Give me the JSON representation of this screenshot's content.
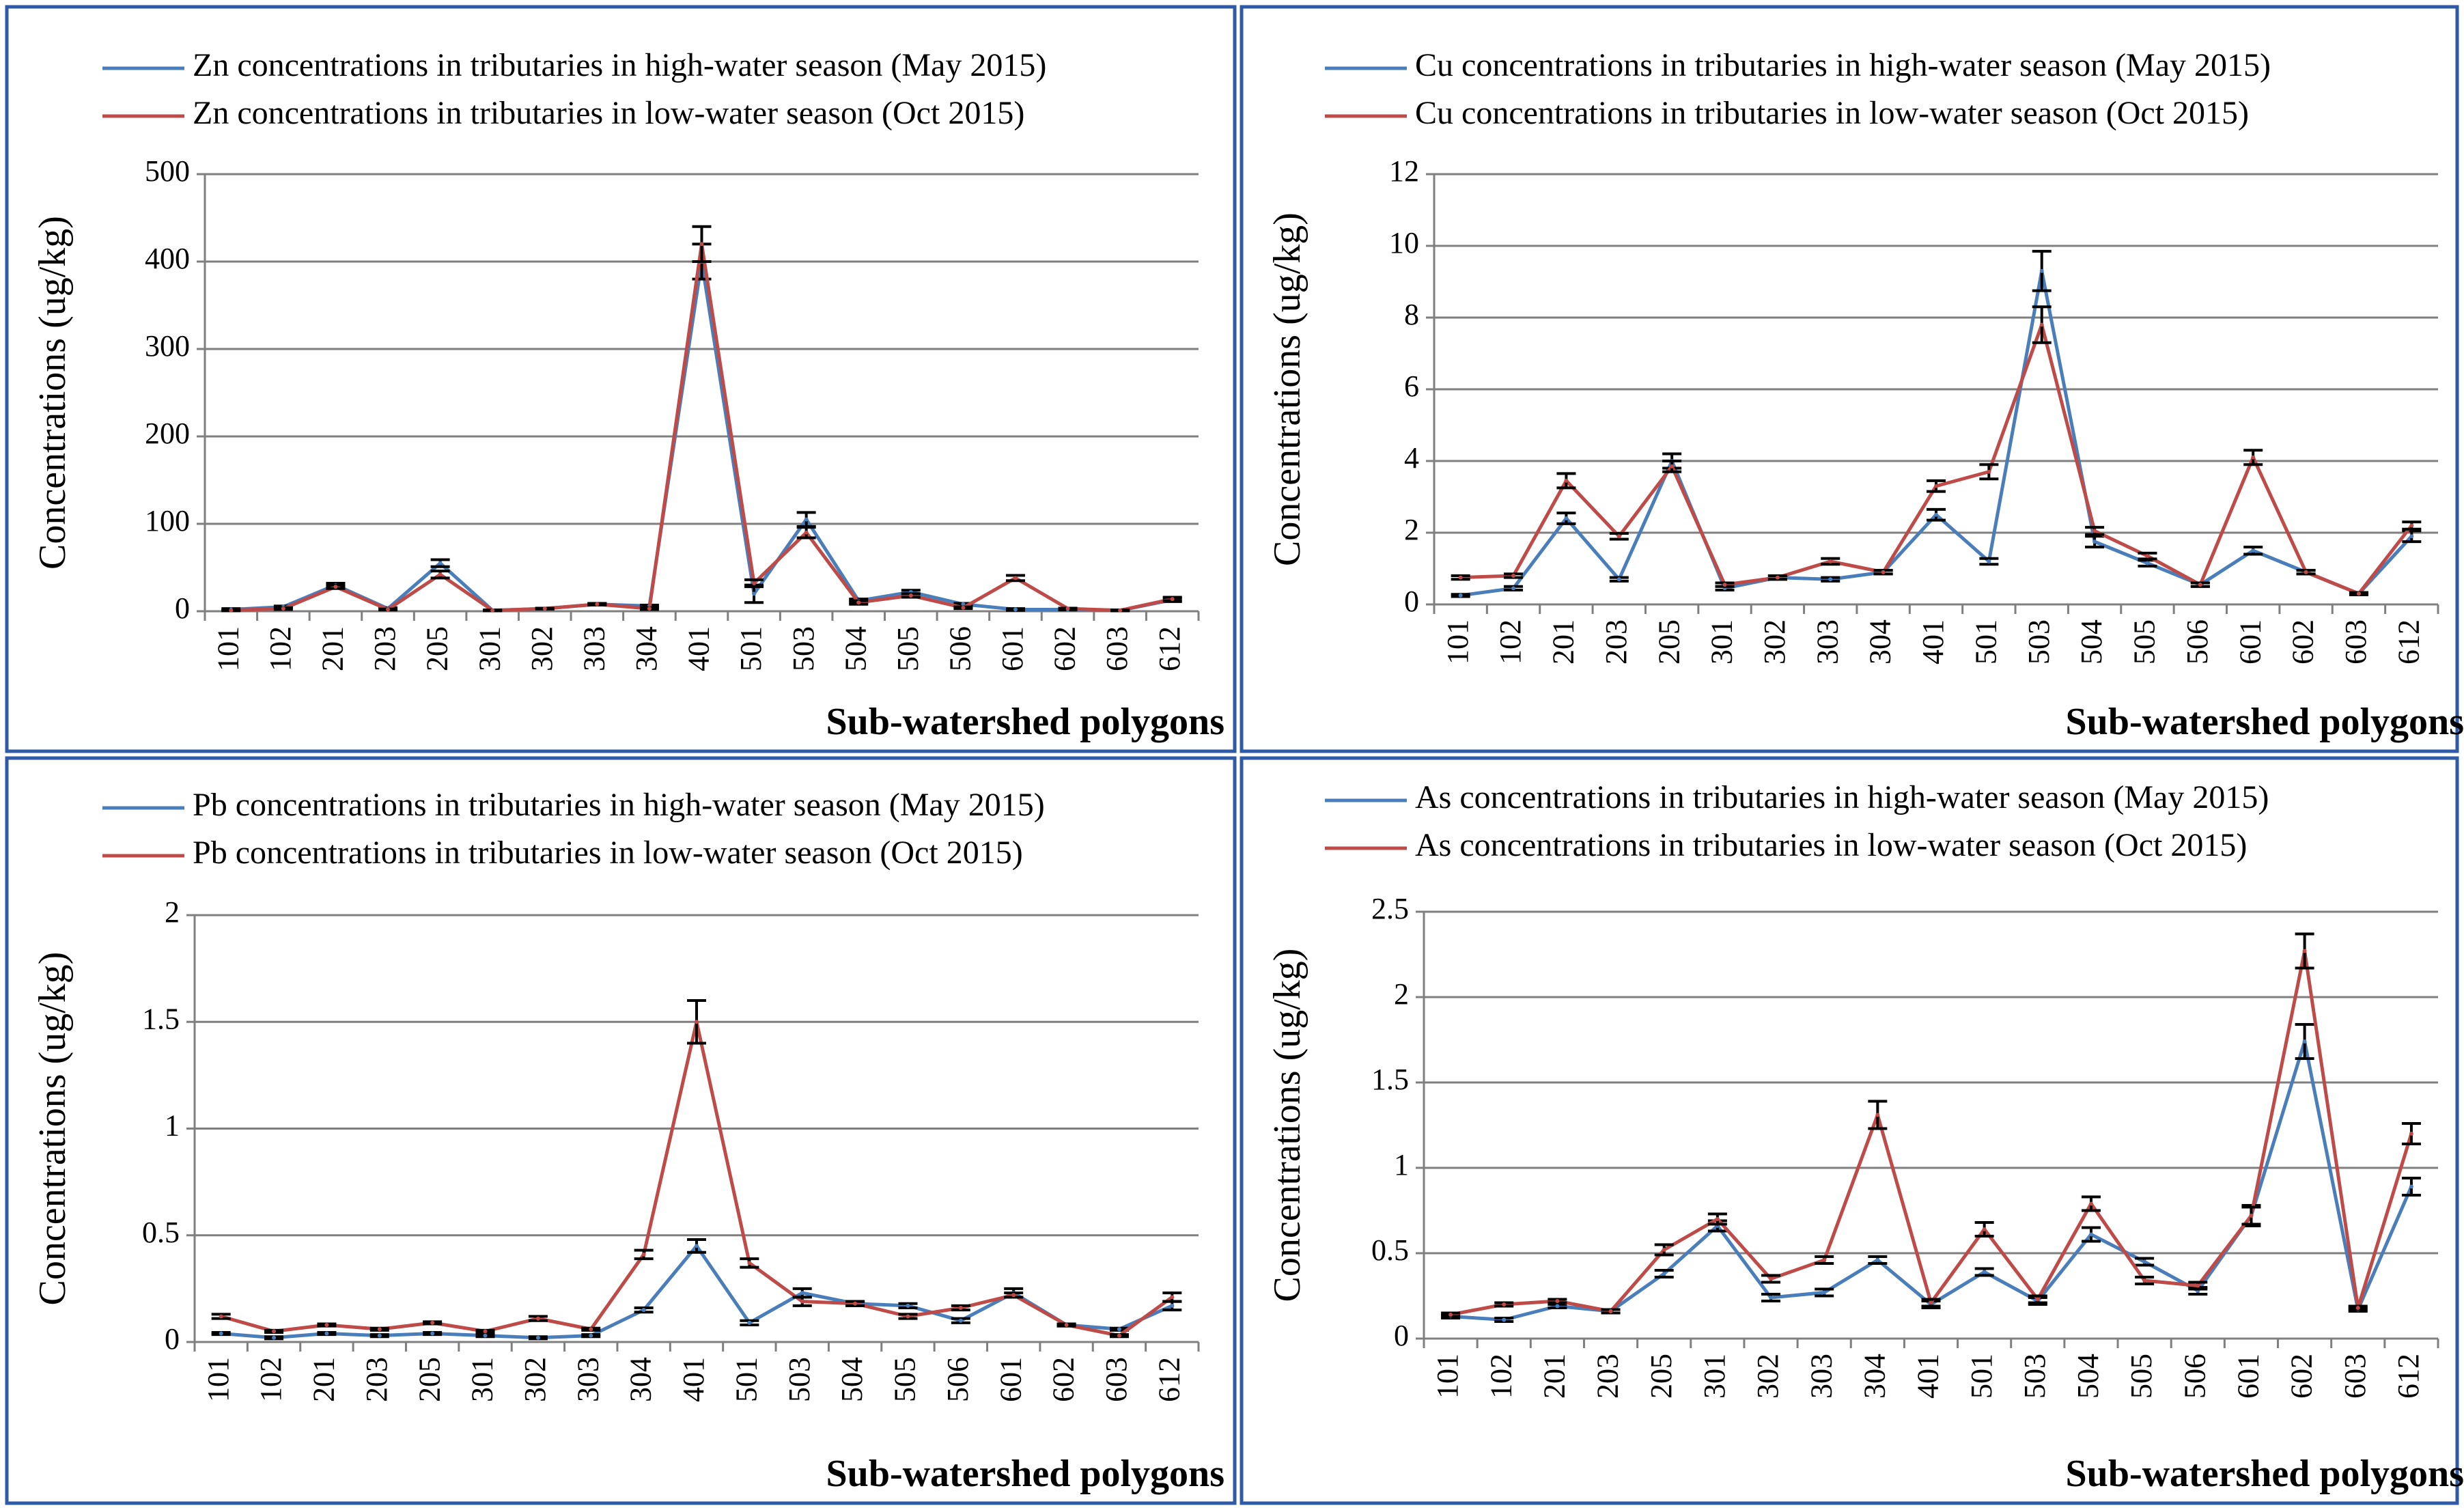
{
  "colors": {
    "high": "#4a7ebb",
    "low": "#be4b48",
    "border": "#2e5aa8",
    "grid": "#7f7f7f",
    "error_bar": "#000000"
  },
  "chart_data": [
    {
      "type": "line",
      "title": "",
      "xlabel": "Sub-watershed polygons",
      "ylabel": "Concentrations (ug/kg)",
      "ylim": [
        0,
        500
      ],
      "yticks": [
        "0",
        "100",
        "200",
        "300",
        "400",
        "500"
      ],
      "yticks_values": [
        0,
        100,
        200,
        300,
        400,
        500
      ],
      "grid": true,
      "legend": "top-right",
      "categories": [
        "101",
        "102",
        "201",
        "203",
        "205",
        "301",
        "302",
        "303",
        "304",
        "401",
        "501",
        "503",
        "504",
        "505",
        "506",
        "601",
        "602",
        "603",
        "612"
      ],
      "series": [
        {
          "name": "Zn concentrations in tributaries in high-water season (May 2015)",
          "color_key": "high",
          "values": [
            2,
            5,
            30,
            3,
            55,
            1,
            3,
            8,
            6,
            400,
            20,
            105,
            12,
            22,
            8,
            2,
            2,
            1,
            13
          ],
          "errors": [
            1,
            1,
            2,
            1,
            4,
            0.5,
            0.5,
            1,
            1,
            20,
            10,
            8,
            2,
            2,
            1,
            1,
            0.5,
            0.5,
            2
          ]
        },
        {
          "name": "Zn concentrations in tributaries in low-water season (Oct 2015)",
          "color_key": "low",
          "values": [
            1,
            3,
            28,
            2,
            42,
            1,
            3,
            8,
            3,
            420,
            32,
            90,
            10,
            18,
            4,
            38,
            3,
            1,
            14
          ],
          "errors": [
            0.5,
            1,
            2,
            0.5,
            4,
            0.5,
            0.5,
            1,
            1,
            20,
            4,
            6,
            2,
            2,
            1,
            3,
            0.5,
            0.5,
            2
          ]
        }
      ]
    },
    {
      "type": "line",
      "title": "",
      "xlabel": "Sub-watershed polygons",
      "ylabel": "Concentrations (ug/kg)",
      "ylim": [
        0,
        12
      ],
      "yticks": [
        "0",
        "2",
        "4",
        "6",
        "8",
        "10",
        "12"
      ],
      "yticks_values": [
        0,
        2,
        4,
        6,
        8,
        10,
        12
      ],
      "grid": true,
      "legend": "top-right",
      "categories": [
        "101",
        "102",
        "201",
        "203",
        "205",
        "301",
        "302",
        "303",
        "304",
        "401",
        "501",
        "503",
        "504",
        "505",
        "506",
        "601",
        "602",
        "603",
        "612"
      ],
      "series": [
        {
          "name": "Cu concentrations in tributaries in high-water season (May 2015)",
          "color_key": "high",
          "values": [
            0.25,
            0.45,
            2.4,
            0.7,
            4.0,
            0.45,
            0.75,
            0.7,
            0.9,
            2.5,
            1.2,
            9.3,
            1.75,
            1.15,
            0.55,
            1.5,
            0.9,
            0.3,
            1.9
          ],
          "errors": [
            0.03,
            0.05,
            0.15,
            0.05,
            0.2,
            0.05,
            0.05,
            0.05,
            0.05,
            0.15,
            0.08,
            0.55,
            0.15,
            0.08,
            0.05,
            0.1,
            0.05,
            0.03,
            0.15
          ]
        },
        {
          "name": "Cu concentrations in tributaries in low-water season (Oct 2015)",
          "color_key": "low",
          "values": [
            0.75,
            0.8,
            3.45,
            1.9,
            3.85,
            0.55,
            0.75,
            1.2,
            0.9,
            3.3,
            3.7,
            7.8,
            2.05,
            1.35,
            0.55,
            4.1,
            0.9,
            0.3,
            2.2
          ],
          "errors": [
            0.05,
            0.05,
            0.2,
            0.08,
            0.15,
            0.05,
            0.05,
            0.08,
            0.05,
            0.15,
            0.2,
            0.5,
            0.1,
            0.08,
            0.05,
            0.2,
            0.05,
            0.03,
            0.1
          ]
        }
      ]
    },
    {
      "type": "line",
      "title": "",
      "xlabel": "Sub-watershed polygons",
      "ylabel": "Concentrations (ug/kg)",
      "ylim": [
        0,
        2
      ],
      "yticks": [
        "0",
        "0.5",
        "1",
        "1.5",
        "2"
      ],
      "yticks_values": [
        0,
        0.5,
        1,
        1.5,
        2
      ],
      "grid": true,
      "legend": "top-right",
      "categories": [
        "101",
        "102",
        "201",
        "203",
        "205",
        "301",
        "302",
        "303",
        "304",
        "401",
        "501",
        "503",
        "504",
        "505",
        "506",
        "601",
        "602",
        "603",
        "612"
      ],
      "series": [
        {
          "name": "Pb concentrations in tributaries in high-water season (May 2015)",
          "color_key": "high",
          "values": [
            0.04,
            0.02,
            0.04,
            0.03,
            0.04,
            0.03,
            0.02,
            0.03,
            0.15,
            0.45,
            0.09,
            0.23,
            0.18,
            0.17,
            0.1,
            0.23,
            0.08,
            0.06,
            0.17
          ],
          "errors": [
            0.005,
            0.005,
            0.005,
            0.005,
            0.005,
            0.005,
            0.005,
            0.005,
            0.01,
            0.03,
            0.01,
            0.02,
            0.01,
            0.01,
            0.01,
            0.02,
            0.005,
            0.005,
            0.02
          ]
        },
        {
          "name": "Pb concentrations in tributaries in low-water season (Oct 2015)",
          "color_key": "low",
          "values": [
            0.12,
            0.05,
            0.08,
            0.06,
            0.09,
            0.05,
            0.11,
            0.06,
            0.41,
            1.5,
            0.37,
            0.19,
            0.18,
            0.12,
            0.16,
            0.22,
            0.08,
            0.03,
            0.21
          ],
          "errors": [
            0.01,
            0.005,
            0.005,
            0.005,
            0.005,
            0.005,
            0.01,
            0.005,
            0.02,
            0.1,
            0.02,
            0.02,
            0.01,
            0.01,
            0.01,
            0.01,
            0.005,
            0.005,
            0.02
          ]
        }
      ]
    },
    {
      "type": "line",
      "title": "",
      "xlabel": "Sub-watershed polygons",
      "ylabel": "Concentrations (ug/kg)",
      "ylim": [
        0,
        2.5
      ],
      "yticks": [
        "0",
        "0.5",
        "1",
        "1.5",
        "2",
        "2.5"
      ],
      "yticks_values": [
        0,
        0.5,
        1,
        1.5,
        2,
        2.5
      ],
      "grid": true,
      "legend": "top-right",
      "categories": [
        "101",
        "102",
        "201",
        "203",
        "205",
        "301",
        "302",
        "303",
        "304",
        "401",
        "501",
        "503",
        "504",
        "505",
        "506",
        "601",
        "602",
        "603",
        "612"
      ],
      "series": [
        {
          "name": "As concentrations in tributaries in high-water season (May 2015)",
          "color_key": "high",
          "values": [
            0.13,
            0.11,
            0.19,
            0.16,
            0.38,
            0.66,
            0.24,
            0.27,
            0.46,
            0.2,
            0.39,
            0.22,
            0.61,
            0.45,
            0.28,
            0.72,
            1.74,
            0.17,
            0.89
          ],
          "errors": [
            0.01,
            0.01,
            0.01,
            0.01,
            0.02,
            0.03,
            0.02,
            0.02,
            0.02,
            0.02,
            0.02,
            0.02,
            0.04,
            0.02,
            0.02,
            0.06,
            0.1,
            0.01,
            0.05
          ]
        },
        {
          "name": "As concentrations in tributaries in low-water season (Oct 2015)",
          "color_key": "low",
          "values": [
            0.14,
            0.2,
            0.22,
            0.16,
            0.52,
            0.7,
            0.35,
            0.46,
            1.31,
            0.21,
            0.64,
            0.23,
            0.79,
            0.34,
            0.31,
            0.72,
            2.27,
            0.18,
            1.2
          ],
          "errors": [
            0.01,
            0.01,
            0.01,
            0.01,
            0.03,
            0.03,
            0.02,
            0.02,
            0.08,
            0.02,
            0.04,
            0.02,
            0.04,
            0.02,
            0.02,
            0.05,
            0.1,
            0.01,
            0.06
          ]
        }
      ]
    }
  ]
}
